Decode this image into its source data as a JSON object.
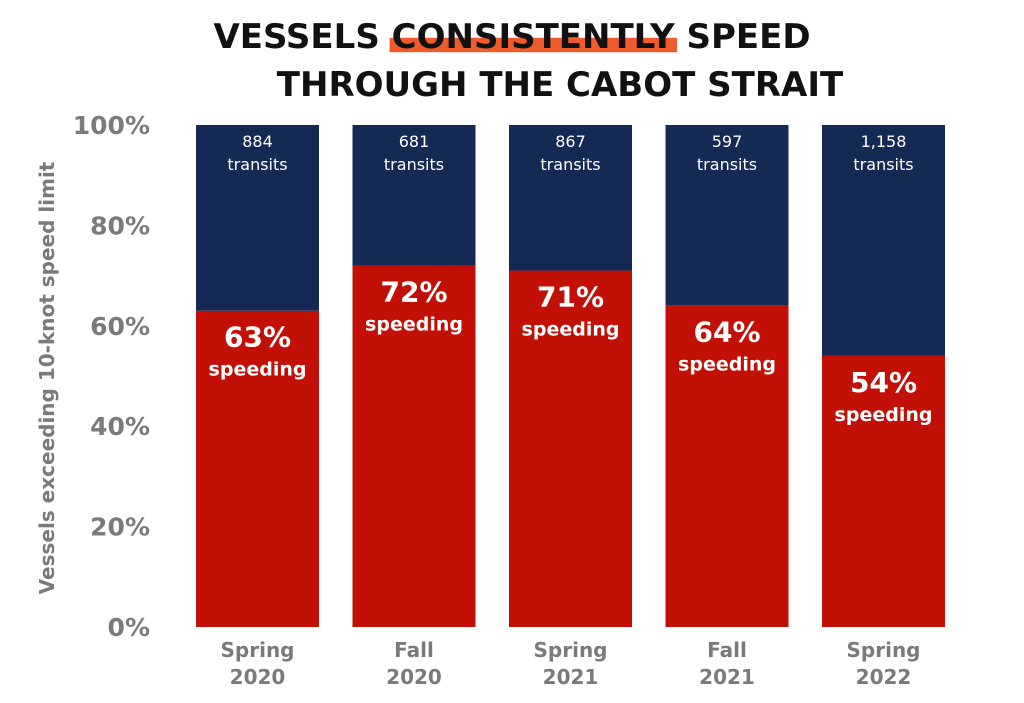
{
  "title": {
    "line1_before": "VESSELS ",
    "line1_highlight": "CONSISTENTLY",
    "line1_after": " SPEED",
    "line2": "THROUGH THE CABOT STRAIT"
  },
  "colors": {
    "speeding": "#c21006",
    "remainder": "#142a55",
    "highlight": "#ef5b2b",
    "axis_text": "#7a7a7a"
  },
  "chart_data": {
    "type": "bar",
    "stacked": true,
    "ylabel": "Vessels exceeding 10-knot speed limit",
    "ylim": [
      0,
      100
    ],
    "yticks": [
      "0%",
      "20%",
      "40%",
      "60%",
      "80%",
      "100%"
    ],
    "categories": [
      [
        "Spring",
        "2020"
      ],
      [
        "Fall",
        "2020"
      ],
      [
        "Spring",
        "2021"
      ],
      [
        "Fall",
        "2021"
      ],
      [
        "Spring",
        "2022"
      ]
    ],
    "series": [
      {
        "values": [
          63,
          72,
          71,
          64,
          54
        ]
      },
      {
        "values": [
          37,
          28,
          29,
          36,
          46
        ]
      }
    ],
    "data_labels": {
      "percent": [
        "63%",
        "72%",
        "71%",
        "64%",
        "54%"
      ],
      "speeding_word": "speeding",
      "transit_counts": [
        "884",
        "681",
        "867",
        "597",
        "1,158"
      ],
      "transits_word": "transits"
    }
  }
}
